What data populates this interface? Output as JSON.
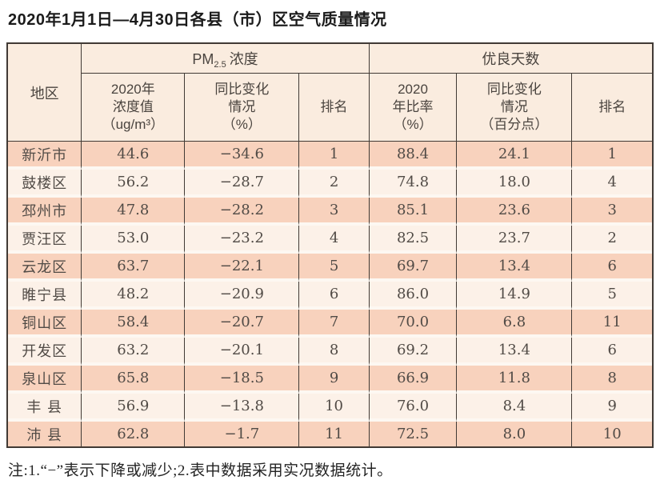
{
  "title": "2020年1月1日—4月30日各县（市）区空气质量情况",
  "footnote": "注:1.“−”表示下降或减少;2.表中数据采用实况数据统计。",
  "colors": {
    "row_odd_bg": "#f8d2bd",
    "row_even_bg": "#fcf1e8",
    "header_bg": "#faecdf",
    "border": "#413a35",
    "row_separator": "#fdf8f2",
    "text": "#514b46"
  },
  "chart_data": {
    "type": "table",
    "title": "2020年1月1日—4月30日各县（市）区空气质量情况",
    "region_header": "地区",
    "column_groups": [
      {
        "label_prefix": "PM",
        "label_sub": "2.5",
        "label_suffix": "浓度",
        "span": 3
      },
      {
        "label": "优良天数",
        "span": 3
      }
    ],
    "sub_headers": {
      "pm_value": "2020年\n浓度值\n（ug/m³）",
      "pm_change": "同比变化\n情况\n（%）",
      "pm_rank": "排名",
      "good_rate": "2020\n年比率\n（%）",
      "good_change": "同比变化\n情况\n（百分点）",
      "good_rank": "排名"
    },
    "rows": [
      {
        "region": "新沂市",
        "pm25": "44.6",
        "pm25_change": "−34.6",
        "pm25_rank": "1",
        "good_rate": "88.4",
        "good_change": "24.1",
        "good_rank": "1"
      },
      {
        "region": "鼓楼区",
        "pm25": "56.2",
        "pm25_change": "−28.7",
        "pm25_rank": "2",
        "good_rate": "74.8",
        "good_change": "18.0",
        "good_rank": "4"
      },
      {
        "region": "邳州市",
        "pm25": "47.8",
        "pm25_change": "−28.2",
        "pm25_rank": "3",
        "good_rate": "85.1",
        "good_change": "23.6",
        "good_rank": "3"
      },
      {
        "region": "贾汪区",
        "pm25": "53.0",
        "pm25_change": "−23.2",
        "pm25_rank": "4",
        "good_rate": "82.5",
        "good_change": "23.7",
        "good_rank": "2"
      },
      {
        "region": "云龙区",
        "pm25": "63.7",
        "pm25_change": "−22.1",
        "pm25_rank": "5",
        "good_rate": "69.7",
        "good_change": "13.4",
        "good_rank": "6"
      },
      {
        "region": "睢宁县",
        "pm25": "48.2",
        "pm25_change": "−20.9",
        "pm25_rank": "6",
        "good_rate": "86.0",
        "good_change": "14.9",
        "good_rank": "5"
      },
      {
        "region": "铜山区",
        "pm25": "58.4",
        "pm25_change": "−20.7",
        "pm25_rank": "7",
        "good_rate": "70.0",
        "good_change": "6.8",
        "good_rank": "11"
      },
      {
        "region": "开发区",
        "pm25": "63.2",
        "pm25_change": "−20.1",
        "pm25_rank": "8",
        "good_rate": "69.2",
        "good_change": "13.4",
        "good_rank": "6"
      },
      {
        "region": "泉山区",
        "pm25": "65.8",
        "pm25_change": "−18.5",
        "pm25_rank": "9",
        "good_rate": "66.9",
        "good_change": "11.8",
        "good_rank": "8"
      },
      {
        "region": "丰 县",
        "pm25": "56.9",
        "pm25_change": "−13.8",
        "pm25_rank": "10",
        "good_rate": "76.0",
        "good_change": "8.4",
        "good_rank": "9"
      },
      {
        "region": "沛 县",
        "pm25": "62.8",
        "pm25_change": "−1.7",
        "pm25_rank": "11",
        "good_rate": "72.5",
        "good_change": "8.0",
        "good_rank": "10"
      }
    ]
  }
}
